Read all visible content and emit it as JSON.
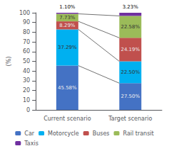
{
  "chart_data": {
    "type": "bar",
    "stacked": true,
    "categories": [
      "Current scenario",
      "Target scenario"
    ],
    "series": [
      {
        "name": "Car",
        "color": "#4472c4",
        "values": [
          45.58,
          27.5
        ],
        "value_labels": [
          "45.58%",
          "27.50%"
        ]
      },
      {
        "name": "Motorcycle",
        "color": "#00b0f0",
        "values": [
          37.29,
          22.5
        ],
        "value_labels": [
          "37.29%",
          "22.50%"
        ]
      },
      {
        "name": "Buses",
        "color": "#c0504d",
        "values": [
          8.29,
          24.19
        ],
        "value_labels": [
          "8.29%",
          "24.19%"
        ]
      },
      {
        "name": "Rail transit",
        "color": "#9bbb59",
        "values": [
          7.73,
          22.58
        ],
        "value_labels": [
          "7.73%",
          "22.58%"
        ]
      },
      {
        "name": "Taxis",
        "color": "#7030a0",
        "values": [
          1.1,
          3.23
        ],
        "value_labels": [
          "1.10%",
          "3.23%"
        ]
      }
    ],
    "ylabel": "(%)",
    "ylim": [
      0,
      100
    ],
    "yticks": [
      0,
      10,
      20,
      30,
      40,
      50,
      60,
      70,
      80,
      90,
      100
    ],
    "grid": false,
    "legend": "bottom",
    "data_labels": true
  }
}
